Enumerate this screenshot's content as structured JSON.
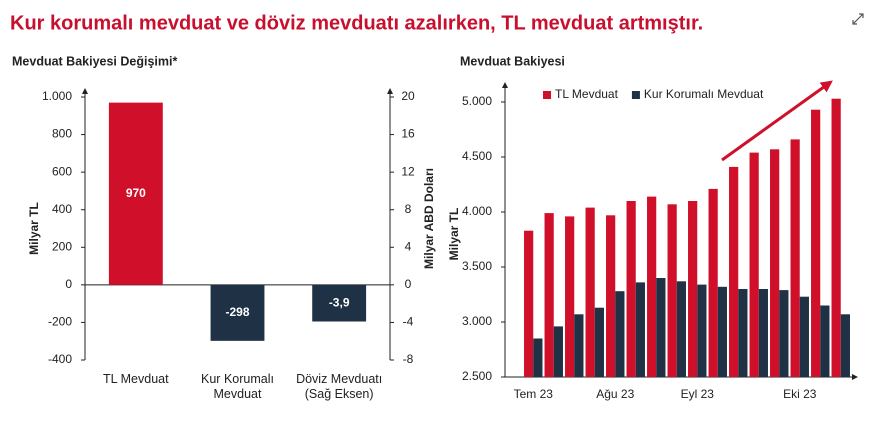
{
  "title": "Kur korumalı mevduat ve döviz mevduatı azalırken, TL mevduat artmıştır.",
  "chart_data": [
    {
      "type": "bar",
      "title": "Mevduat Bakiyesi Değişimi*",
      "y_label": "Milyar TL",
      "y2_label": "Milyar ABD Doları",
      "categories": [
        "TL Mevduat",
        "Kur Korumalı Mevduat",
        "Döviz Mevduatı (Sağ Eksen)"
      ],
      "series": [
        {
          "color": "#d0102b",
          "values": [
            970,
            null,
            null
          ]
        },
        {
          "color": "#1f3145",
          "values": [
            null,
            -298,
            null
          ]
        },
        {
          "color": "#1f3145",
          "axis": "y2",
          "values": [
            null,
            null,
            -3.9
          ],
          "value_labels": [
            null,
            null,
            "-3,9"
          ]
        }
      ],
      "ylim": [
        -400,
        1000
      ],
      "yticks": [
        -400,
        -200,
        0,
        200,
        400,
        600,
        800,
        {
          "value": 1000,
          "label": "1.000"
        }
      ],
      "y2lim": [
        -8,
        20
      ],
      "y2ticks": [
        -8,
        -4,
        0,
        4,
        8,
        12,
        16,
        20
      ],
      "data_labels": true
    },
    {
      "type": "bar",
      "title": "Mevduat Bakiyesi",
      "y_label": "Milyar TL",
      "categories": [
        "Tem 23",
        null,
        null,
        null,
        "Ağu 23",
        null,
        null,
        null,
        "Eyl 23",
        null,
        null,
        null,
        null,
        "Eki 23",
        null,
        null
      ],
      "series": [
        {
          "name": "TL Mevduat",
          "color": "#d0102b",
          "values": [
            3830,
            3990,
            3960,
            4040,
            3970,
            4100,
            4140,
            4070,
            4100,
            4210,
            4410,
            4540,
            4570,
            4660,
            4930,
            5030
          ]
        },
        {
          "name": "Kur Korumalı Mevduat",
          "color": "#1f3145",
          "values": [
            2850,
            2960,
            3070,
            3130,
            3280,
            3360,
            3400,
            3370,
            3340,
            3320,
            3300,
            3300,
            3290,
            3230,
            3150,
            3070
          ]
        }
      ],
      "ylim": [
        2500,
        5100
      ],
      "yticks": [
        {
          "value": 2500,
          "label": "2.500"
        },
        {
          "value": 3000,
          "label": "3.000"
        },
        {
          "value": 3500,
          "label": "3.500"
        },
        {
          "value": 4000,
          "label": "4.000"
        },
        {
          "value": 4500,
          "label": "4.500"
        },
        {
          "value": 5000,
          "label": "5.000"
        }
      ],
      "legend": "top"
    }
  ]
}
